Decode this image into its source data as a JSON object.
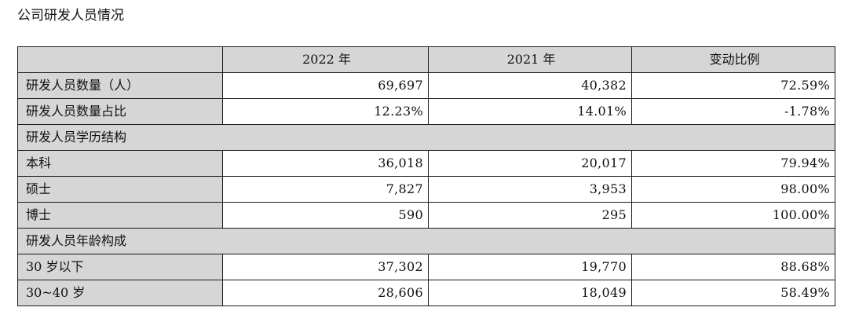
{
  "title": "公司研发人员情况",
  "table": {
    "headers": [
      "",
      "2022 年",
      "2021 年",
      "变动比例"
    ],
    "rows": [
      {
        "label": "研发人员数量（人）",
        "y2022": "69,697",
        "y2021": "40,382",
        "change": "72.59%"
      },
      {
        "label": "研发人员数量占比",
        "y2022": "12.23%",
        "y2021": "14.01%",
        "change": "-1.78%"
      },
      {
        "label": "研发人员学历结构"
      },
      {
        "label": "本科",
        "y2022": "36,018",
        "y2021": "20,017",
        "change": "79.94%"
      },
      {
        "label": "硕士",
        "y2022": "7,827",
        "y2021": "3,953",
        "change": "98.00%"
      },
      {
        "label": "博士",
        "y2022": "590",
        "y2021": "295",
        "change": "100.00%"
      },
      {
        "label": "研发人员年龄构成"
      },
      {
        "label": "30 岁以下",
        "y2022": "37,302",
        "y2021": "19,770",
        "change": "88.68%"
      },
      {
        "label": "30~40 岁",
        "y2022": "28,606",
        "y2021": "18,049",
        "change": "58.49%"
      }
    ]
  }
}
